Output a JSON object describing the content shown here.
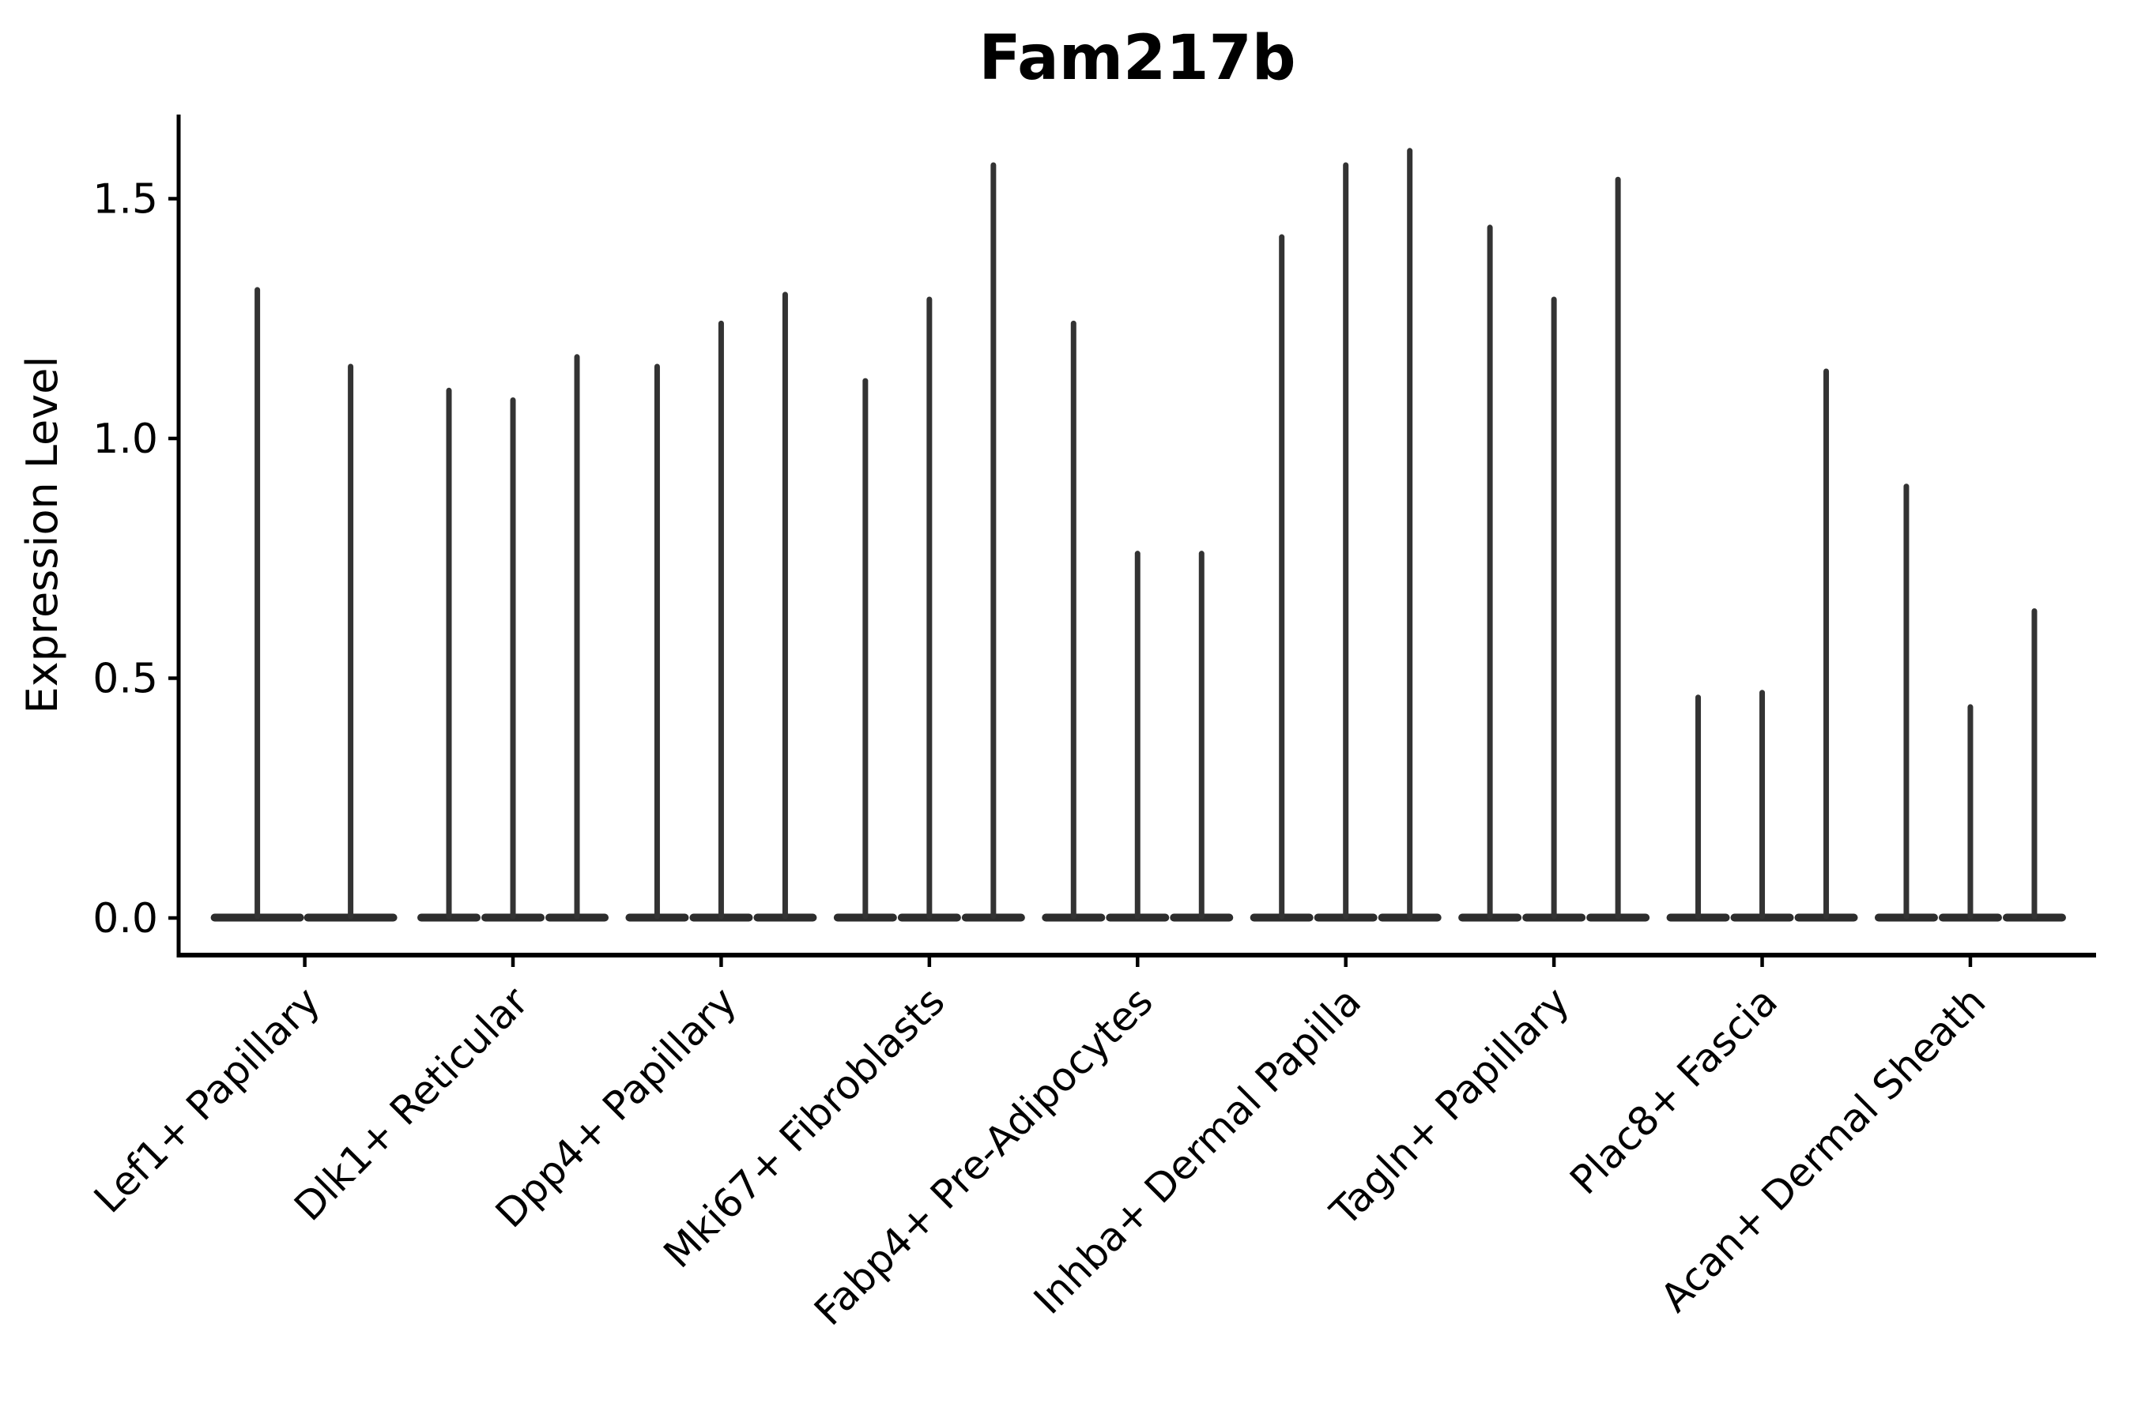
{
  "title": "Fam217b",
  "colors": {
    "axis": "#000000",
    "text": "#000000",
    "violin_line": "#333333",
    "violin_base": "#2d2d2d",
    "background": "#ffffff"
  },
  "chart_data": {
    "type": "violin",
    "title": "Fam217b",
    "ylabel": "Expression Level",
    "xlabel": "",
    "legend": "none",
    "grid": false,
    "orientation": "vertical",
    "ylim": [
      -0.08,
      1.68
    ],
    "yticks": [
      0.0,
      0.5,
      1.0,
      1.5
    ],
    "ytick_labels": [
      "0.0",
      "0.5",
      "1.0",
      "1.5"
    ],
    "categories": [
      "Lef1+ Papillary",
      "Dlk1+ Reticular",
      "Dpp4+ Papillary",
      "Mki67+ Fibroblasts",
      "Fabp4+ Pre-Adipocytes",
      "Inhba+ Dermal Papilla",
      "Tagln+ Papillary",
      "Plac8+ Fascia",
      "Acan+ Dermal Sheath"
    ],
    "violins": [
      {
        "category": "Lef1+ Papillary",
        "tail_max_values": [
          1.31,
          1.15
        ]
      },
      {
        "category": "Dlk1+ Reticular",
        "tail_max_values": [
          1.1,
          1.08,
          1.17
        ]
      },
      {
        "category": "Dpp4+ Papillary",
        "tail_max_values": [
          1.15,
          1.24,
          1.3
        ]
      },
      {
        "category": "Mki67+ Fibroblasts",
        "tail_max_values": [
          1.12,
          1.29,
          1.57
        ]
      },
      {
        "category": "Fabp4+ Pre-Adipocytes",
        "tail_max_values": [
          1.24,
          0.76,
          0.76
        ]
      },
      {
        "category": "Inhba+ Dermal Papilla",
        "tail_max_values": [
          1.42,
          1.57,
          1.6
        ]
      },
      {
        "category": "Tagln+ Papillary",
        "tail_max_values": [
          1.44,
          1.29,
          1.54
        ]
      },
      {
        "category": "Plac8+ Fascia",
        "tail_max_values": [
          0.46,
          0.47,
          1.14
        ]
      },
      {
        "category": "Acan+ Dermal Sheath",
        "tail_max_values": [
          0.9,
          0.44,
          0.64
        ]
      }
    ],
    "violin_body": "mass concentrated at 0 (flat wide base), thin tail up to tail_max"
  }
}
